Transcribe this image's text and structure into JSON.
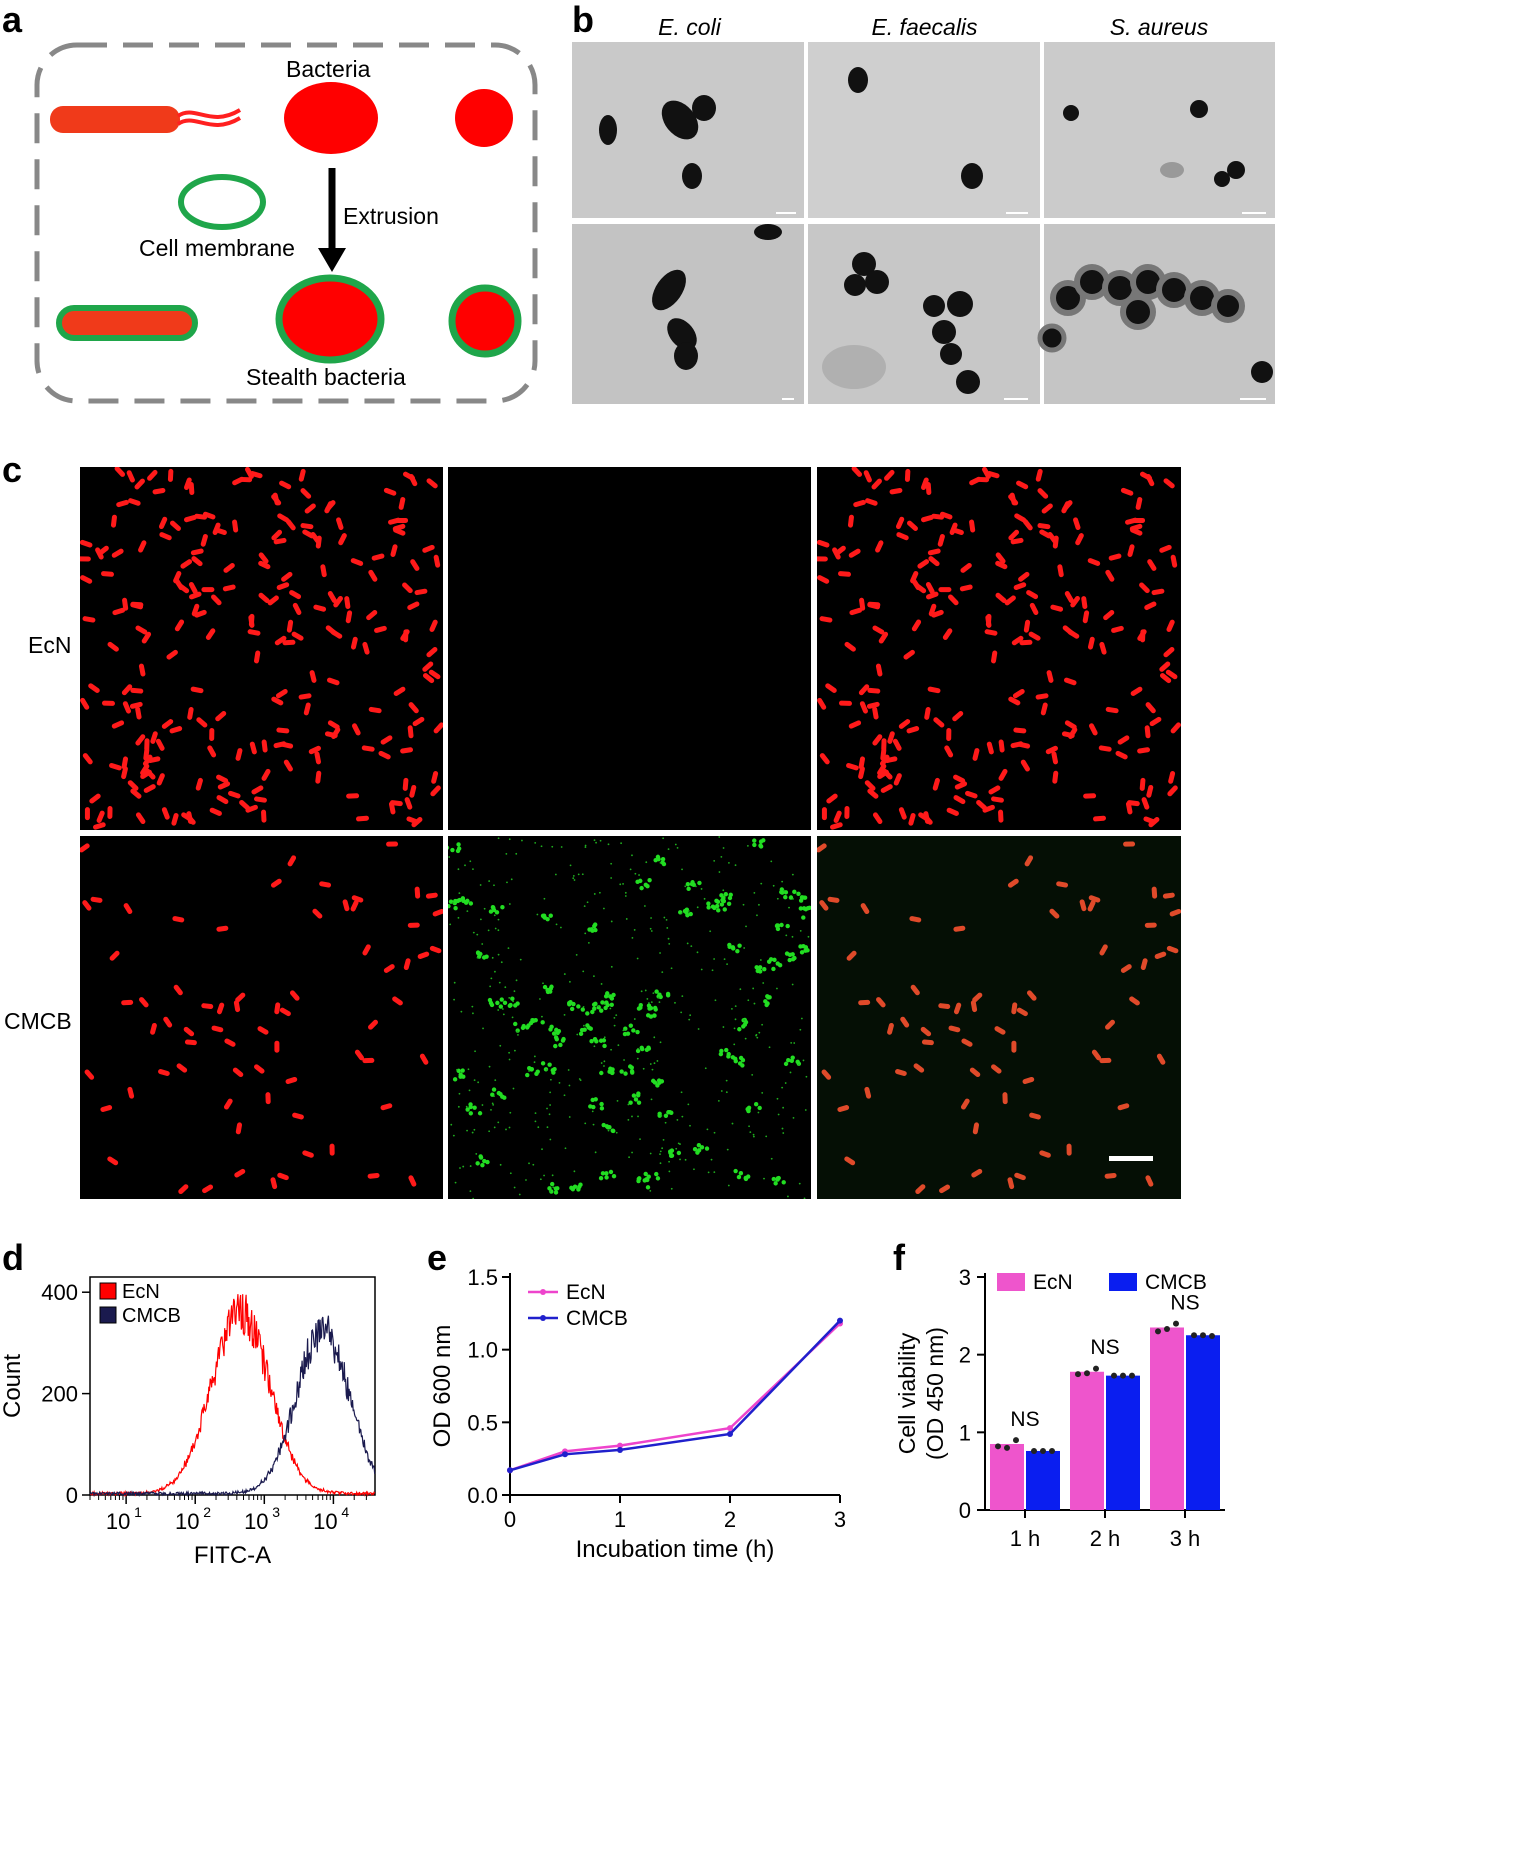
{
  "panel_labels": [
    "a",
    "b",
    "c",
    "d",
    "e",
    "f"
  ],
  "panel_a": {
    "bacteria_label": "Bacteria",
    "membrane_label": "Cell membrane",
    "extrusion_label": "Extrusion",
    "stealth_label": "Stealth bacteria",
    "colors": {
      "bacteria": "#ff0000",
      "rod": "#f03a1a",
      "membrane": "#1fa64a",
      "frame": "#888888"
    }
  },
  "panel_b": {
    "columns": [
      "E. coli",
      "E. faecalis",
      "S. aureus"
    ]
  },
  "panel_c": {
    "rows": [
      "EcN",
      "CMCB"
    ]
  },
  "chart_data": [
    {
      "panel": "d",
      "type": "area",
      "xlabel": "FITC-A",
      "ylabel": "Count",
      "x_scale": "log",
      "xticks": [
        "10",
        "10",
        "10",
        "10"
      ],
      "xtick_exponents": [
        "1",
        "2",
        "3",
        "4"
      ],
      "xtick_values": [
        10,
        100,
        1000,
        10000
      ],
      "yticks": [
        "0",
        "200",
        "400"
      ],
      "ylim": [
        0,
        430
      ],
      "xlim": [
        3,
        40000
      ],
      "legend_position": "top-left",
      "series": [
        {
          "name": "EcN",
          "color": "#ff0000",
          "peak_x": 450,
          "peak_y": 355,
          "sigma_decades": 0.42
        },
        {
          "name": "CMCB",
          "color": "#1a1a4e",
          "peak_x": 7000,
          "peak_y": 325,
          "sigma_decades": 0.38
        }
      ]
    },
    {
      "panel": "e",
      "type": "line",
      "xlabel": "Incubation time (h)",
      "ylabel": "OD 600 nm",
      "x": [
        0,
        0.5,
        1,
        2,
        3
      ],
      "xticks": [
        "0",
        "1",
        "2",
        "3"
      ],
      "yticks": [
        "0.0",
        "0.5",
        "1.0",
        "1.5"
      ],
      "xlim": [
        0,
        3
      ],
      "ylim": [
        0,
        1.5
      ],
      "legend_position": "top-left",
      "series": [
        {
          "name": "EcN",
          "color": "#ee44cc",
          "values": [
            0.17,
            0.3,
            0.34,
            0.46,
            1.18
          ]
        },
        {
          "name": "CMCB",
          "color": "#2020cc",
          "values": [
            0.17,
            0.28,
            0.31,
            0.42,
            1.2
          ]
        }
      ]
    },
    {
      "panel": "f",
      "type": "bar",
      "ylabel": "Cell viability\n(OD 450 nm)",
      "ylabel_lines": [
        "Cell viability",
        "(OD 450 nm)"
      ],
      "categories": [
        "1 h",
        "2 h",
        "3 h"
      ],
      "yticks": [
        "0",
        "1",
        "2",
        "3"
      ],
      "ylim": [
        0,
        3
      ],
      "legend_position": "top",
      "annotations": [
        "NS",
        "NS",
        "NS"
      ],
      "series": [
        {
          "name": "EcN",
          "color": "#ee55cc",
          "values": [
            0.85,
            1.78,
            2.35
          ],
          "points": [
            [
              0.82,
              0.8,
              0.9
            ],
            [
              1.75,
              1.76,
              1.82
            ],
            [
              2.3,
              2.33,
              2.4
            ]
          ]
        },
        {
          "name": "CMCB",
          "color": "#0a1ef0",
          "values": [
            0.76,
            1.73,
            2.25
          ],
          "points": [
            [
              0.76,
              0.76,
              0.76
            ],
            [
              1.73,
              1.73,
              1.73
            ],
            [
              2.25,
              2.25,
              2.24
            ]
          ]
        }
      ]
    }
  ]
}
